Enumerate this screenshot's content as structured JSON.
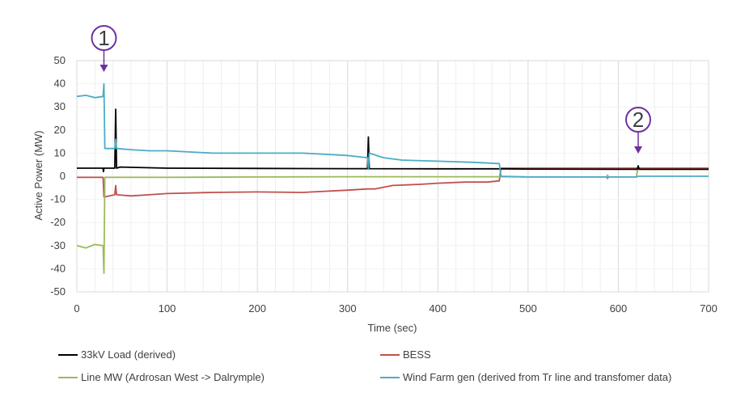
{
  "chart_data": {
    "type": "line",
    "title": "",
    "xlabel": "Time (sec)",
    "ylabel": "Active Power (MW)",
    "xlim": [
      0,
      700
    ],
    "ylim": [
      -50,
      50
    ],
    "xticks": [
      0,
      100,
      200,
      300,
      400,
      500,
      600,
      700
    ],
    "yticks": [
      -50,
      -40,
      -30,
      -20,
      -10,
      0,
      10,
      20,
      30,
      40,
      50
    ],
    "grid": "vertical major and minor",
    "legend_position": "bottom",
    "series": [
      {
        "name": "33kV Load (derived)",
        "color": "#000000",
        "points": [
          [
            0,
            3.5
          ],
          [
            29,
            3.5
          ],
          [
            29.5,
            2
          ],
          [
            30,
            3.5
          ],
          [
            42,
            3.5
          ],
          [
            43,
            29
          ],
          [
            44,
            3.5
          ],
          [
            48,
            4
          ],
          [
            100,
            3.5
          ],
          [
            200,
            3.4
          ],
          [
            300,
            3.3
          ],
          [
            322,
            3.3
          ],
          [
            323,
            17
          ],
          [
            324,
            3.3
          ],
          [
            400,
            3.2
          ],
          [
            470,
            3.2
          ],
          [
            500,
            3.1
          ],
          [
            600,
            3.0
          ],
          [
            621,
            3.0
          ],
          [
            622,
            4.5
          ],
          [
            623,
            3.0
          ],
          [
            700,
            3.0
          ]
        ]
      },
      {
        "name": "BESS",
        "color": "#C0504D",
        "points": [
          [
            0,
            -0.5
          ],
          [
            29,
            -0.5
          ],
          [
            30,
            -9
          ],
          [
            42,
            -8
          ],
          [
            43,
            -4
          ],
          [
            44,
            -8
          ],
          [
            60,
            -8.5
          ],
          [
            80,
            -8
          ],
          [
            100,
            -7.5
          ],
          [
            150,
            -7
          ],
          [
            200,
            -6.8
          ],
          [
            250,
            -7
          ],
          [
            300,
            -6
          ],
          [
            322,
            -5.5
          ],
          [
            323,
            -5.5
          ],
          [
            330,
            -5.5
          ],
          [
            350,
            -4
          ],
          [
            380,
            -3.5
          ],
          [
            400,
            -3
          ],
          [
            430,
            -2.5
          ],
          [
            455,
            -2.5
          ],
          [
            468,
            -2
          ],
          [
            470,
            3.5
          ],
          [
            500,
            3.5
          ],
          [
            550,
            3.5
          ],
          [
            600,
            3.5
          ],
          [
            700,
            3.5
          ]
        ]
      },
      {
        "name": "Line MW (Ardrosan West -> Dalrymple)",
        "color": "#9BBB59",
        "points": [
          [
            0,
            -30
          ],
          [
            10,
            -31
          ],
          [
            20,
            -29.5
          ],
          [
            29,
            -30
          ],
          [
            30,
            -42
          ],
          [
            31,
            -0.5
          ],
          [
            50,
            -0.5
          ],
          [
            100,
            -0.5
          ],
          [
            200,
            -0.3
          ],
          [
            300,
            -0.2
          ],
          [
            400,
            -0.2
          ],
          [
            470,
            -0.2
          ],
          [
            500,
            -0.3
          ],
          [
            587,
            -0.3
          ],
          [
            588,
            0.5
          ],
          [
            589,
            -0.3
          ],
          [
            620,
            -0.3
          ],
          [
            622,
            4.5
          ],
          [
            623,
            3
          ],
          [
            650,
            3
          ],
          [
            700,
            3
          ]
        ]
      },
      {
        "name": "Wind Farm gen (derived from Tr line and transfomer data)",
        "color": "#4BACC6",
        "points": [
          [
            0,
            34.5
          ],
          [
            10,
            35
          ],
          [
            20,
            34
          ],
          [
            29,
            34.5
          ],
          [
            30,
            40
          ],
          [
            31,
            12
          ],
          [
            40,
            12
          ],
          [
            42,
            12
          ],
          [
            43,
            16
          ],
          [
            44,
            12
          ],
          [
            60,
            11.5
          ],
          [
            80,
            11
          ],
          [
            100,
            11
          ],
          [
            150,
            10
          ],
          [
            200,
            10
          ],
          [
            250,
            10
          ],
          [
            300,
            9
          ],
          [
            322,
            8
          ],
          [
            323,
            3
          ],
          [
            324,
            10
          ],
          [
            340,
            8
          ],
          [
            360,
            7
          ],
          [
            400,
            6.5
          ],
          [
            440,
            6
          ],
          [
            468,
            5.5
          ],
          [
            470,
            0
          ],
          [
            500,
            -0.3
          ],
          [
            587,
            -0.3
          ],
          [
            588,
            -1
          ],
          [
            589,
            -0.3
          ],
          [
            620,
            -0.3
          ],
          [
            622,
            0
          ],
          [
            700,
            0
          ]
        ]
      }
    ],
    "annotations": [
      {
        "label": "1",
        "x": 30,
        "color": "#7030A0"
      },
      {
        "label": "2",
        "x": 622,
        "color": "#7030A0"
      }
    ]
  }
}
